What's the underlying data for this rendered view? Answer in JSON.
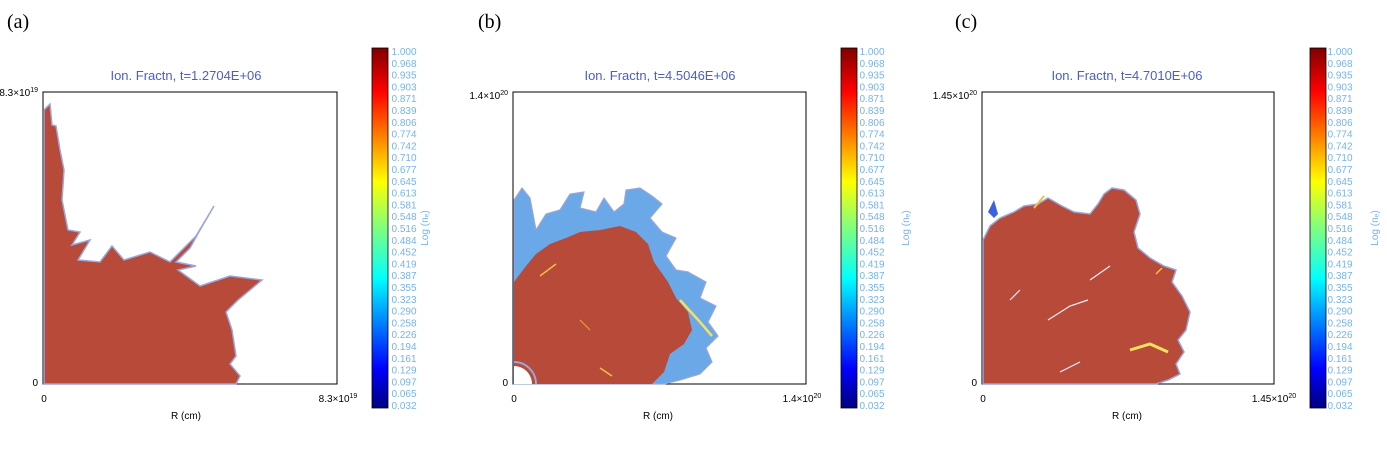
{
  "panels": [
    {
      "letter": "(a)",
      "title": "Ion. Fractn, t=1.2704E+06",
      "xlabel": "R (cm)",
      "x_min_label": "0",
      "x_max_label": "8.3×10",
      "x_max_exp": "19",
      "y_min_label": "0",
      "y_max_label": "8.3×10",
      "y_max_exp": "19",
      "colorbar_label": "Log (nₑ)"
    },
    {
      "letter": "(b)",
      "title": "Ion. Fractn, t=4.5046E+06",
      "xlabel": "R (cm)",
      "x_min_label": "0",
      "x_max_label": "1.4×10",
      "x_max_exp": "20",
      "y_min_label": "0",
      "y_max_label": "1.4×10",
      "y_max_exp": "20",
      "colorbar_label": "Log (nₑ)"
    },
    {
      "letter": "(c)",
      "title": "Ion. Fractn, t=4.7010E+06",
      "xlabel": "R (cm)",
      "x_min_label": "0",
      "x_max_label": "1.45×10",
      "x_max_exp": "20",
      "y_min_label": "0",
      "y_max_label": "1.45×10",
      "y_max_exp": "20",
      "colorbar_label": "Log (nₑ)"
    }
  ],
  "colorbar_ticks": [
    "1.000",
    "0.968",
    "0.935",
    "0.903",
    "0.871",
    "0.839",
    "0.806",
    "0.774",
    "0.742",
    "0.710",
    "0.677",
    "0.645",
    "0.613",
    "0.581",
    "0.548",
    "0.516",
    "0.484",
    "0.452",
    "0.419",
    "0.387",
    "0.355",
    "0.323",
    "0.290",
    "0.258",
    "0.226",
    "0.194",
    "0.161",
    "0.129",
    "0.097",
    "0.065",
    "0.032"
  ],
  "colors": {
    "ionized_fill": "#b84a3a",
    "boundary": "#9aa6d8",
    "title": "#4a5ec9",
    "colorbar_text": "#74b4e8"
  },
  "chart_data": {
    "type": "heatmap",
    "colormap": "jet",
    "colorbar_range": [
      0.032,
      1.0
    ]
  }
}
